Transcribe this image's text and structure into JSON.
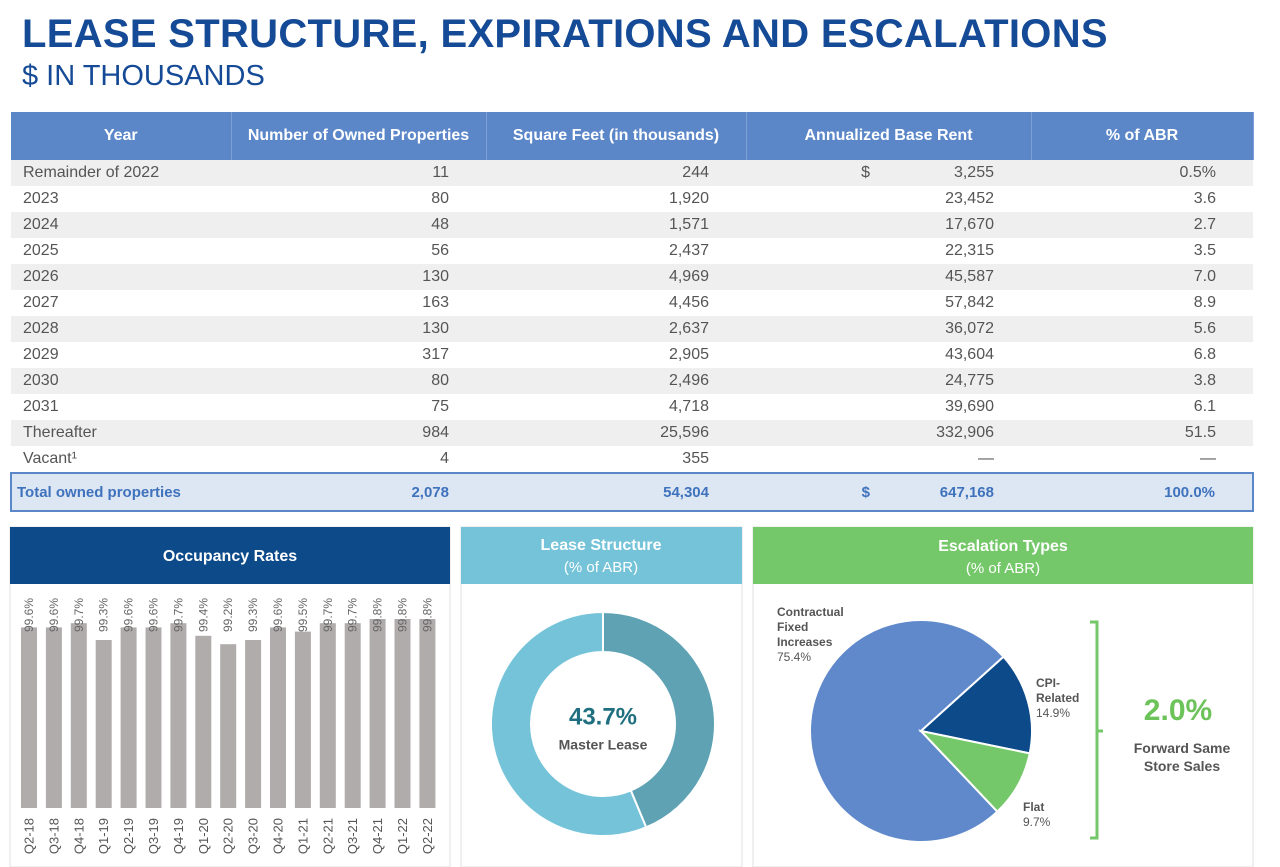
{
  "header": {
    "title": "LEASE STRUCTURE, EXPIRATIONS AND ESCALATIONS",
    "subtitle": "$ IN THOUSANDS"
  },
  "table": {
    "columns": [
      "Year",
      "Number of Owned Properties",
      "Square Feet (in thousands)",
      "Annualized Base Rent",
      "% of ABR"
    ],
    "rows": [
      [
        "Remainder of 2022",
        "11",
        "244",
        "$",
        "3,255",
        "0.5%"
      ],
      [
        "2023",
        "80",
        "1,920",
        null,
        "23,452",
        "3.6"
      ],
      [
        "2024",
        "48",
        "1,571",
        null,
        "17,670",
        "2.7"
      ],
      [
        "2025",
        "56",
        "2,437",
        null,
        "22,315",
        "3.5"
      ],
      [
        "2026",
        "130",
        "4,969",
        null,
        "45,587",
        "7.0"
      ],
      [
        "2027",
        "163",
        "4,456",
        null,
        "57,842",
        "8.9"
      ],
      [
        "2028",
        "130",
        "2,637",
        null,
        "36,072",
        "5.6"
      ],
      [
        "2029",
        "317",
        "2,905",
        null,
        "43,604",
        "6.8"
      ],
      [
        "2030",
        "80",
        "2,496",
        null,
        "24,775",
        "3.8"
      ],
      [
        "2031",
        "75",
        "4,718",
        null,
        "39,690",
        "6.1"
      ],
      [
        "Thereafter",
        "984",
        "25,596",
        null,
        "332,906",
        "51.5"
      ],
      [
        "Vacant¹",
        "4",
        "355",
        null,
        "—",
        "—"
      ]
    ],
    "total": [
      "Total owned properties",
      "2,078",
      "54,304",
      "$",
      "647,168",
      "100.0%"
    ]
  },
  "chart_data": [
    {
      "type": "bar",
      "title": "Occupancy Rates",
      "categories": [
        "Q2-18",
        "Q3-18",
        "Q4-18",
        "Q1-19",
        "Q2-19",
        "Q3-19",
        "Q4-19",
        "Q1-20",
        "Q2-20",
        "Q3-20",
        "Q4-20",
        "Q1-21",
        "Q2-21",
        "Q3-21",
        "Q4-21",
        "Q1-22",
        "Q2-22"
      ],
      "values": [
        99.6,
        99.6,
        99.7,
        99.3,
        99.6,
        99.6,
        99.7,
        99.4,
        99.2,
        99.3,
        99.6,
        99.5,
        99.7,
        99.7,
        99.8,
        99.8,
        99.8
      ],
      "value_labels": [
        "99.6%",
        "99.6%",
        "99.7%",
        "99.3%",
        "99.6%",
        "99.6%",
        "99.7%",
        "99.4%",
        "99.2%",
        "99.3%",
        "99.6%",
        "99.5%",
        "99.7%",
        "99.7%",
        "99.8%",
        "99.8%",
        "99.8%"
      ],
      "color": "#b0acac",
      "ylim": [
        95.3,
        100.3
      ]
    },
    {
      "type": "donut",
      "title": "Lease Structure",
      "subtitle": "(% of ABR)",
      "categories": [
        "Master Lease",
        null
      ],
      "values": [
        43.7,
        56.3
      ],
      "value_labels": [
        "43.7%",
        null
      ],
      "colors": [
        "#5ea2b3",
        "#74c3d9"
      ]
    },
    {
      "type": "pie",
      "title": "Escalation Types",
      "subtitle": "(% of ABR)",
      "categories": [
        "Contractual Fixed Increases",
        "CPI-Related",
        "Flat"
      ],
      "values": [
        75.4,
        14.9,
        9.7
      ],
      "value_labels": [
        "75.4%",
        "14.9%",
        "9.7%"
      ],
      "colors": [
        "#6089cb",
        "#0c4a8a",
        "#75c86a"
      ],
      "annotation": {
        "value": "2.0%",
        "label": "Forward Same Store Sales"
      }
    }
  ]
}
